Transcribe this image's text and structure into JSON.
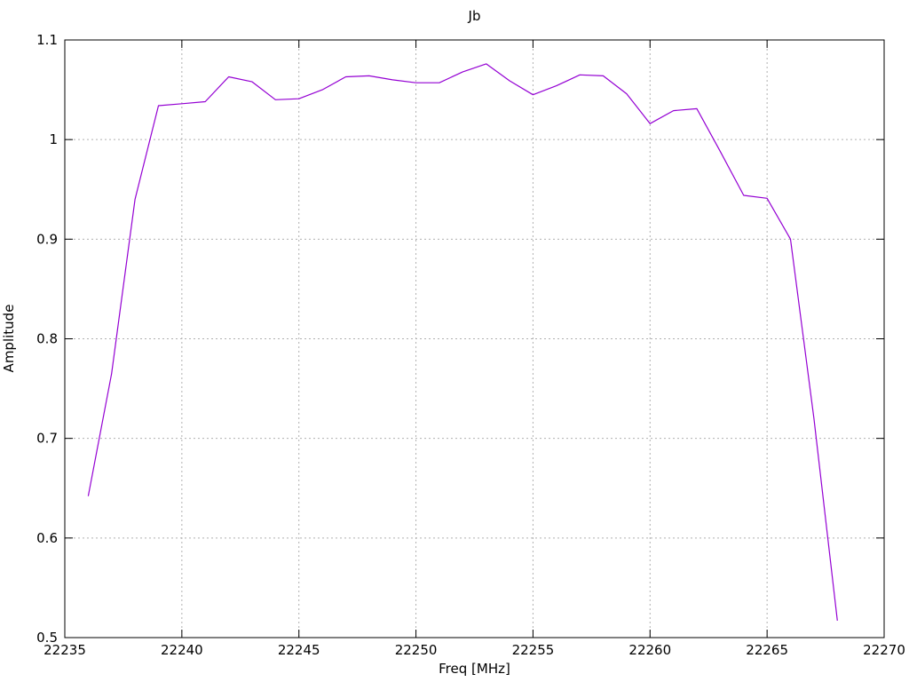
{
  "window": {
    "background_color": "#ffffff",
    "text_color": "#000000"
  },
  "chart_data": {
    "type": "line",
    "title": "Jb",
    "xlabel": "Freq [MHz]",
    "ylabel": "Amplitude",
    "xlim": [
      22235,
      22270
    ],
    "ylim": [
      0.5,
      1.1
    ],
    "x_ticks": [
      22235,
      22240,
      22245,
      22250,
      22255,
      22260,
      22265,
      22270
    ],
    "x_tick_labels": [
      "22235",
      "22240",
      "22245",
      "22250",
      "22255",
      "22260",
      "22265",
      "22270"
    ],
    "y_ticks": [
      0.5,
      0.6,
      0.7,
      0.8,
      0.9,
      1.0,
      1.1
    ],
    "y_tick_labels": [
      "0.5",
      "0.6",
      "0.7",
      "0.8",
      "0.9",
      "1",
      "1.1"
    ],
    "grid": true,
    "grid_style": "dashed",
    "grid_color": "#b0b0b0",
    "axis_color": "#000000",
    "legend": "none",
    "series": [
      {
        "name": "Jb",
        "color": "#9400d3",
        "x": [
          22236,
          22237,
          22238,
          22239,
          22240,
          22241,
          22242,
          22243,
          22244,
          22245,
          22246,
          22247,
          22248,
          22249,
          22250,
          22251,
          22252,
          22253,
          22254,
          22255,
          22256,
          22257,
          22258,
          22259,
          22260,
          22261,
          22262,
          22263,
          22264,
          22265,
          22266,
          22267,
          22268
        ],
        "y": [
          0.642,
          0.765,
          0.94,
          1.034,
          1.036,
          1.038,
          1.063,
          1.058,
          1.04,
          1.041,
          1.05,
          1.063,
          1.064,
          1.06,
          1.057,
          1.057,
          1.068,
          1.076,
          1.059,
          1.045,
          1.054,
          1.065,
          1.064,
          1.046,
          1.016,
          1.029,
          1.031,
          0.988,
          0.944,
          0.941,
          0.9,
          0.72,
          0.517
        ]
      }
    ]
  }
}
